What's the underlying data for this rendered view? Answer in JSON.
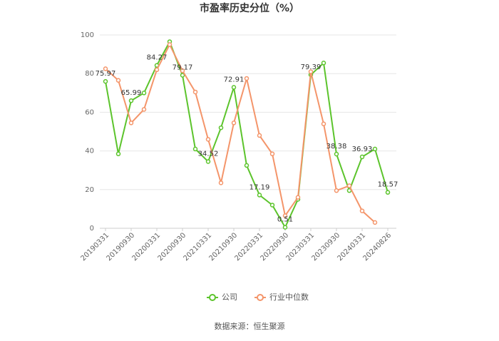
{
  "chart_data": {
    "type": "line",
    "title": "市盈率历史分位（%）",
    "categories": [
      "20190331",
      null,
      "20190930",
      null,
      "20200331",
      null,
      "20200930",
      null,
      "20210331",
      null,
      "20210930",
      null,
      "20220331",
      null,
      "20220930",
      null,
      "20230331",
      null,
      "20230930",
      null,
      "20240331",
      null,
      "20240826"
    ],
    "series": [
      {
        "name": "公司",
        "color": "#5cc42c",
        "values": [
          75.97,
          38.5,
          65.99,
          70,
          84.27,
          96.5,
          79.17,
          41,
          34.52,
          52,
          72.91,
          32.5,
          17.19,
          12,
          0.51,
          15,
          79.39,
          85.5,
          38.38,
          19.5,
          36.93,
          41,
          18.57
        ],
        "value_labels": [
          "75.97",
          null,
          "65.99",
          null,
          "84.27",
          null,
          "79.17",
          null,
          "34.52",
          null,
          "72.91",
          null,
          "17.19",
          null,
          "0.51",
          null,
          "79.39",
          null,
          "38.38",
          null,
          "36.93",
          null,
          "18.57"
        ]
      },
      {
        "name": "行业中位数",
        "color": "#f4956a",
        "values": [
          82.5,
          76.5,
          54.5,
          61.5,
          82,
          95,
          81.5,
          70.5,
          46,
          23.5,
          54.5,
          77.5,
          48,
          38.5,
          6.5,
          16,
          81,
          54,
          19.5,
          22,
          9,
          3,
          null
        ]
      }
    ],
    "ylim": [
      0,
      100
    ],
    "yticks": [
      0,
      20,
      40,
      60,
      80,
      100
    ],
    "grid": true,
    "source": "数据来源：恒生聚源"
  }
}
